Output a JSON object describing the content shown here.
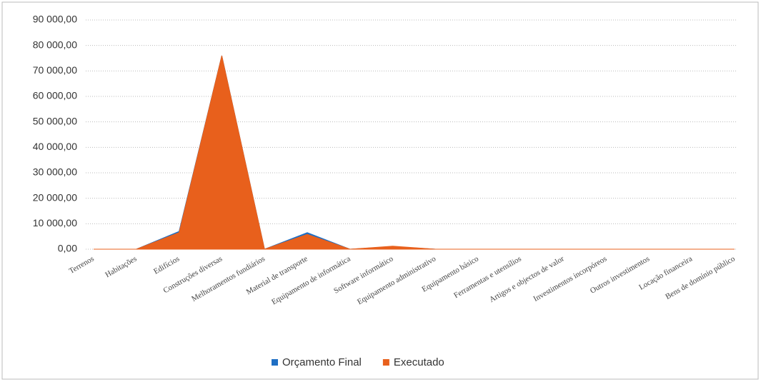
{
  "chart_data": {
    "type": "area",
    "categories": [
      "Terrenos",
      "Habitações",
      "Edifícios",
      "Construções diversas",
      "Melhoramentos fundiários",
      "Material de transporte",
      "Equipamento de informática",
      "Software informático",
      "Equipamento administrativo",
      "Equipamento básico",
      "Ferramentas e utensílios",
      "Artigos e objectos de valor",
      "Investimentos incorpóreos",
      "Outros investimentos",
      "Locação financeira",
      "Bens de domínio público"
    ],
    "series": [
      {
        "name": "Orçamento Final",
        "color": "#1f6fc4",
        "values": [
          0,
          0,
          7000,
          76000,
          0,
          6500,
          0,
          1000,
          0,
          0,
          0,
          0,
          0,
          0,
          0,
          0
        ]
      },
      {
        "name": "Executado",
        "color": "#e8601c",
        "values": [
          0,
          0,
          6500,
          76000,
          0,
          5800,
          0,
          1200,
          0,
          0,
          0,
          0,
          0,
          0,
          0,
          0
        ]
      }
    ],
    "ylim": [
      0,
      90000
    ],
    "yticks": [
      {
        "value": 0,
        "label": "0,00"
      },
      {
        "value": 10000,
        "label": "10 000,00"
      },
      {
        "value": 20000,
        "label": "20 000,00"
      },
      {
        "value": 30000,
        "label": "30 000,00"
      },
      {
        "value": 40000,
        "label": "40 000,00"
      },
      {
        "value": 50000,
        "label": "50 000,00"
      },
      {
        "value": 60000,
        "label": "60 000,00"
      },
      {
        "value": 70000,
        "label": "70 000,00"
      },
      {
        "value": 80000,
        "label": "80 000,00"
      },
      {
        "value": 90000,
        "label": "90 000,00"
      }
    ],
    "grid": true,
    "legend": "bottom"
  }
}
